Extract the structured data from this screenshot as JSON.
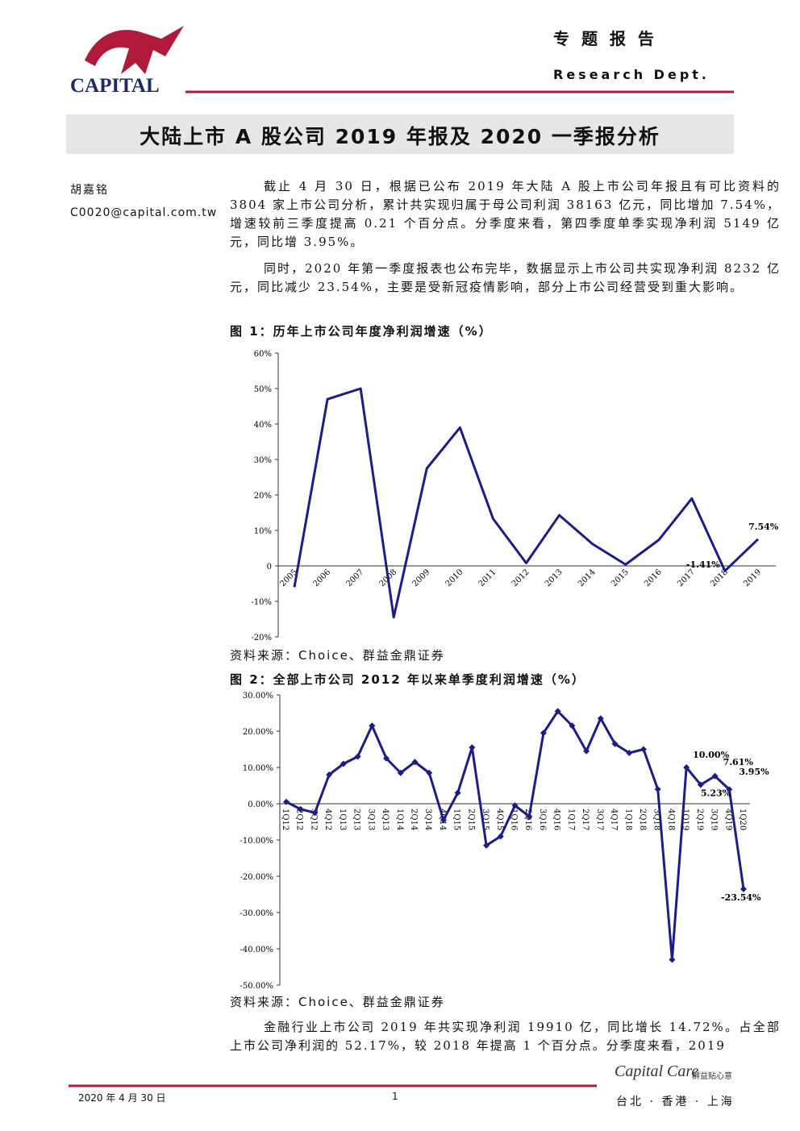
{
  "header": {
    "logo": "CAPITAL",
    "report_type": "专 题 报 告",
    "dept": "Research Dept."
  },
  "title": "大陆上市 A 股公司 2019 年报及 2020 一季报分析",
  "author": {
    "name": "胡嘉铭",
    "email": "C0020@capital.com.tw"
  },
  "paragraphs": [
    "截止 4 月 30 日，根据已公布 2019 年大陆 A 股上市公司年报且有可比资料的 3804 家上市公司分析，累计共实现归属于母公司利润 38163 亿元，同比增加 7.54%，增速较前三季度提高 0.21 个百分点。分季度来看，第四季度单季实现净利润 5149 亿元，同比增 3.95%。",
    "同时，2020 年第一季度报表也公布完毕，数据显示上市公司共实现净利润 8232 亿元，同比减少 23.54%，主要是受新冠疫情影响，部分上市公司经营受到重大影响。",
    "金融行业上市公司 2019 年共实现净利润 19910 亿，同比增长 14.72%。占全部上市公司净利润的 52.17%，较 2018 年提高 1 个百分点。分季度来看，2019"
  ],
  "chart_data": [
    {
      "type": "line",
      "title": "图 1：历年上市公司年度净利润增速（%）",
      "source": "资料来源：Choice、群益金鼎证券",
      "color": "#1c1c8a",
      "marker": "none",
      "categories": [
        "2005",
        "2006",
        "2007",
        "2008",
        "2009",
        "2010",
        "2011",
        "2012",
        "2013",
        "2014",
        "2015",
        "2016",
        "2017",
        "2018",
        "2019"
      ],
      "values": [
        -6,
        47,
        50,
        -14.5,
        27.5,
        39,
        13.3,
        0.8,
        14.3,
        6.2,
        0.4,
        7.3,
        19,
        -1.41,
        7.54
      ],
      "value_labels": [
        null,
        null,
        null,
        null,
        null,
        null,
        null,
        null,
        null,
        null,
        null,
        null,
        null,
        "-1.41%",
        "7.54%"
      ],
      "ylim": [
        -20,
        60
      ],
      "yticks": [
        {
          "value": -20,
          "label": "-20%"
        },
        {
          "value": -10,
          "label": "-10%"
        },
        {
          "value": 0,
          "label": "0"
        },
        {
          "value": 10,
          "label": "10%"
        },
        {
          "value": 20,
          "label": "20%"
        },
        {
          "value": 30,
          "label": "30%"
        },
        {
          "value": 40,
          "label": "40%"
        },
        {
          "value": 50,
          "label": "50%"
        },
        {
          "value": 60,
          "label": "60%"
        }
      ],
      "grid": false
    },
    {
      "type": "line",
      "title": "图 2：全部上市公司 2012 年以来单季度利润增速（%）",
      "source": "资料来源：Choice、群益金鼎证券",
      "color": "#1c1c8a",
      "marker": "diamond",
      "categories": [
        "1Q12",
        "2Q12",
        "3Q12",
        "4Q12",
        "1Q13",
        "2Q13",
        "3Q13",
        "4Q13",
        "1Q14",
        "2Q14",
        "3Q14",
        "4Q14",
        "1Q15",
        "2Q15",
        "3Q15",
        "4Q15",
        "1Q16",
        "2Q16",
        "3Q16",
        "4Q16",
        "1Q17",
        "2Q17",
        "3Q17",
        "4Q17",
        "1Q18",
        "2Q18",
        "3Q18",
        "4Q18",
        "1Q19",
        "2Q19",
        "3Q19",
        "4Q19",
        "1Q20"
      ],
      "values": [
        0.5,
        -1.5,
        -2.5,
        8,
        11,
        13,
        21.5,
        12.5,
        8.5,
        11.5,
        8.5,
        -4.5,
        3,
        15.5,
        -11.5,
        -9,
        -0.5,
        -3.5,
        19.5,
        25.5,
        21.5,
        14.5,
        23.5,
        16.5,
        14,
        15,
        4,
        -43,
        10,
        5.23,
        7.61,
        3.95,
        -23.54
      ],
      "value_labels": [
        null,
        null,
        null,
        null,
        null,
        null,
        null,
        null,
        null,
        null,
        null,
        null,
        null,
        null,
        null,
        null,
        null,
        null,
        null,
        null,
        null,
        null,
        null,
        null,
        null,
        null,
        null,
        null,
        "10.00%",
        "5.23%",
        "7.61%",
        "3.95%",
        "-23.54%"
      ],
      "ylim": [
        -50,
        30
      ],
      "yticks": [
        {
          "value": -50,
          "label": "-50.00%"
        },
        {
          "value": -40,
          "label": "-40.00%"
        },
        {
          "value": -30,
          "label": "-30.00%"
        },
        {
          "value": -20,
          "label": "-20.00%"
        },
        {
          "value": -10,
          "label": "-10.00%"
        },
        {
          "value": 0,
          "label": "0.00%"
        },
        {
          "value": 10,
          "label": "10.00%"
        },
        {
          "value": 20,
          "label": "20.00%"
        },
        {
          "value": 30,
          "label": "30.00%"
        }
      ],
      "grid": false
    }
  ],
  "footer": {
    "date": "2020 年 4 月 30 日",
    "page": "1",
    "brand": "Capital Care",
    "brand_slogan": "群益贴心意",
    "offices": "台北 · 香港 · 上海"
  }
}
